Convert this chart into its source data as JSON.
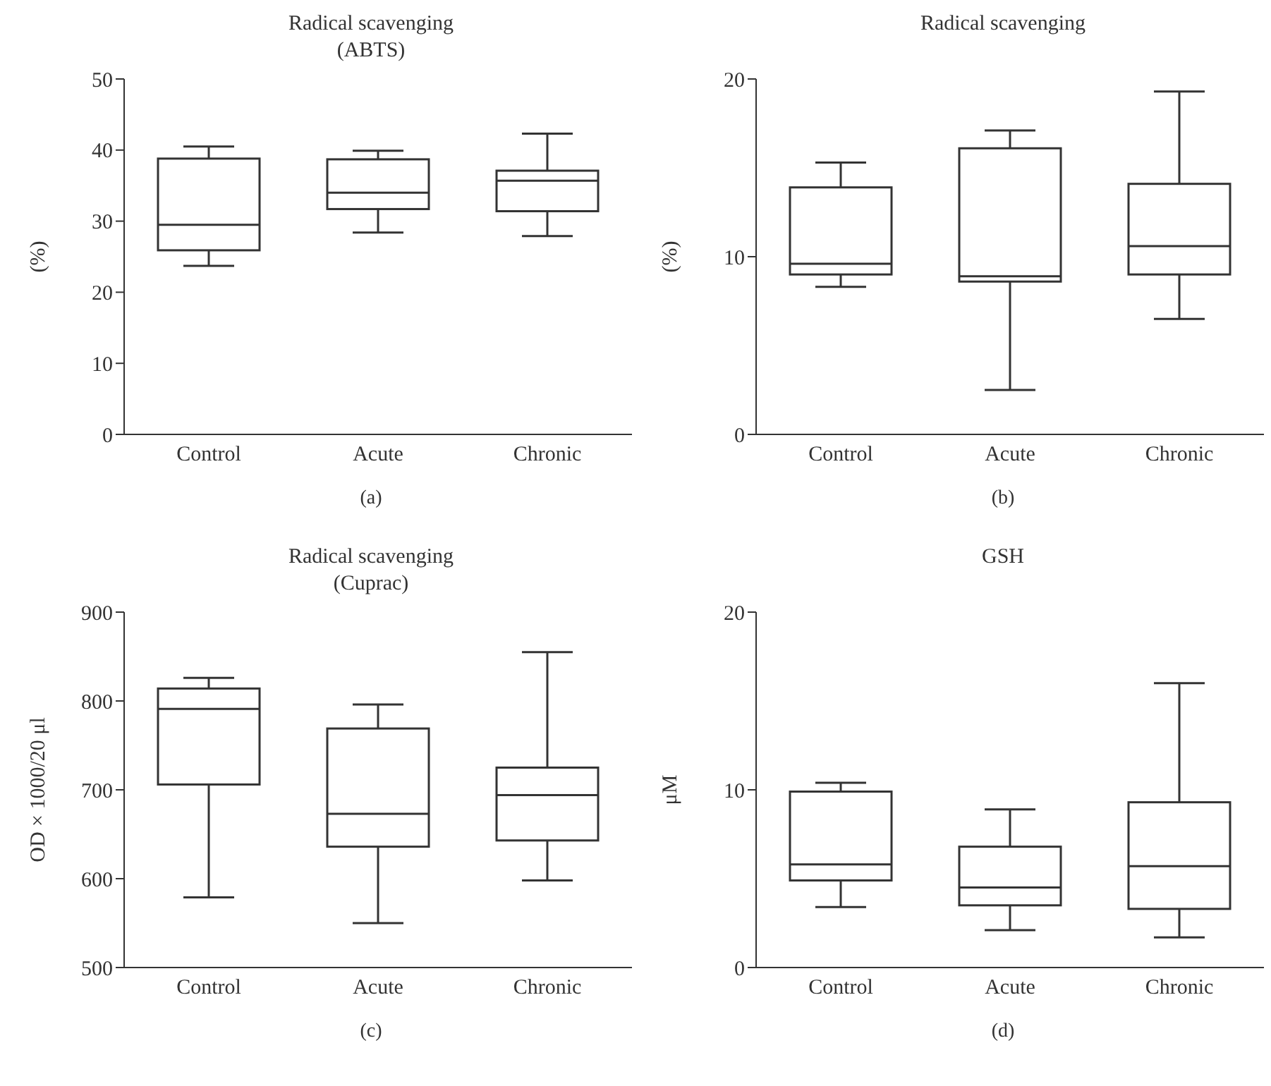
{
  "chart_data": [
    {
      "type": "box",
      "title": "Radical scavenging",
      "subtitle": "(ABTS)",
      "ylabel": "(%)",
      "categories": [
        "Control",
        "Acute",
        "Chronic"
      ],
      "ylim": [
        0,
        50
      ],
      "yticks": [
        0,
        10,
        20,
        30,
        40,
        50
      ],
      "annotations": [
        "(a)"
      ],
      "boxes": [
        {
          "low": 23.7,
          "q1": 25.9,
          "median": 29.5,
          "q3": 38.8,
          "high": 40.5
        },
        {
          "low": 28.4,
          "q1": 31.7,
          "median": 34.0,
          "q3": 38.7,
          "high": 39.9
        },
        {
          "low": 27.9,
          "q1": 31.4,
          "median": 35.7,
          "q3": 37.1,
          "high": 42.3
        }
      ]
    },
    {
      "type": "box",
      "title": "Radical scavenging",
      "ylabel": "(%)",
      "categories": [
        "Control",
        "Acute",
        "Chronic"
      ],
      "ylim": [
        0,
        20
      ],
      "yticks": [
        0,
        10,
        20
      ],
      "annotations": [
        "(b)"
      ],
      "boxes": [
        {
          "low": 8.3,
          "q1": 9.0,
          "median": 9.6,
          "q3": 13.9,
          "high": 15.3
        },
        {
          "low": 2.5,
          "q1": 8.6,
          "median": 8.9,
          "q3": 16.1,
          "high": 17.1
        },
        {
          "low": 6.5,
          "q1": 9.0,
          "median": 10.6,
          "q3": 14.1,
          "high": 19.3
        }
      ]
    },
    {
      "type": "box",
      "title": "Radical scavenging",
      "subtitle": "(Cuprac)",
      "ylabel": "OD × 1000/20 μl",
      "categories": [
        "Control",
        "Acute",
        "Chronic"
      ],
      "ylim": [
        500,
        900
      ],
      "yticks": [
        500,
        600,
        700,
        800,
        900
      ],
      "annotations": [
        "(c)"
      ],
      "boxes": [
        {
          "low": 579,
          "q1": 706,
          "median": 791,
          "q3": 814,
          "high": 826
        },
        {
          "low": 550,
          "q1": 636,
          "median": 673,
          "q3": 769,
          "high": 796
        },
        {
          "low": 598,
          "q1": 643,
          "median": 694,
          "q3": 725,
          "high": 855
        }
      ]
    },
    {
      "type": "box",
      "title": "GSH",
      "ylabel": "μM",
      "categories": [
        "Control",
        "Acute",
        "Chronic"
      ],
      "ylim": [
        0,
        20
      ],
      "yticks": [
        0,
        10,
        20
      ],
      "annotations": [
        "(d)"
      ],
      "boxes": [
        {
          "low": 3.4,
          "q1": 4.9,
          "median": 5.8,
          "q3": 9.9,
          "high": 10.4
        },
        {
          "low": 2.1,
          "q1": 3.5,
          "median": 4.5,
          "q3": 6.8,
          "high": 8.9
        },
        {
          "low": 1.7,
          "q1": 3.3,
          "median": 5.7,
          "q3": 9.3,
          "high": 16.0
        }
      ]
    }
  ]
}
